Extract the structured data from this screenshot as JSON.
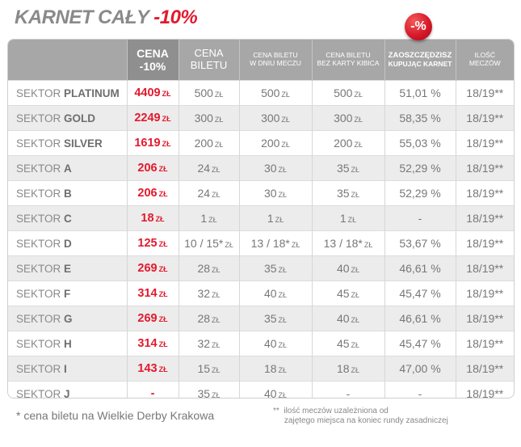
{
  "title": {
    "main": "KARNET CAŁY",
    "discount": "-10%"
  },
  "badge": "-%",
  "header": {
    "c0": "",
    "c1": [
      "CENA",
      "-10%"
    ],
    "c2": [
      "CENA",
      "BILETU"
    ],
    "c3": [
      "CENA BILETU",
      "W DNIU MECZU"
    ],
    "c4": [
      "CENA BILETU",
      "BEZ KARTY KIBICA"
    ],
    "c5": [
      "ZAOSZCZĘDZISZ",
      "KUPUJĄC KARNET"
    ],
    "c6": [
      "ILOŚĆ",
      "MECZÓW"
    ]
  },
  "currency": "ZŁ",
  "rows": [
    {
      "prefix": "SEKTOR",
      "name": "PLATINUM",
      "price": "4409",
      "price_unit": "ZŁ",
      "bilet": "500",
      "dzien": "500",
      "bez": "500",
      "oszcz": "51,01 %",
      "mecze": "18/19**"
    },
    {
      "prefix": "SEKTOR",
      "name": "GOLD",
      "price": "2249",
      "price_unit": "ZŁ",
      "bilet": "300",
      "dzien": "300",
      "bez": "300",
      "oszcz": "58,35 %",
      "mecze": "18/19**"
    },
    {
      "prefix": "SEKTOR",
      "name": "SILVER",
      "price": "1619",
      "price_unit": "ZŁ",
      "bilet": "200",
      "dzien": "200",
      "bez": "200",
      "oszcz": "55,03 %",
      "mecze": "18/19**"
    },
    {
      "prefix": "SEKTOR",
      "name": "A",
      "price": "206",
      "price_unit": "ZŁ",
      "bilet": "24",
      "dzien": "30",
      "bez": "35",
      "oszcz": "52,29 %",
      "mecze": "18/19**"
    },
    {
      "prefix": "SEKTOR",
      "name": "B",
      "price": "206",
      "price_unit": "ZŁ",
      "bilet": "24",
      "dzien": "30",
      "bez": "35",
      "oszcz": "52,29 %",
      "mecze": "18/19**"
    },
    {
      "prefix": "SEKTOR",
      "name": "C",
      "price": "18",
      "price_unit": "ZŁ",
      "bilet": "1",
      "dzien": "1",
      "bez": "1",
      "oszcz": "-",
      "mecze": "18/19**"
    },
    {
      "prefix": "SEKTOR",
      "name": "D",
      "price": "125",
      "price_unit": "ZŁ",
      "bilet": "10 / 15*",
      "dzien": "13 / 18*",
      "bez": "13 / 18*",
      "oszcz": "53,67 %",
      "mecze": "18/19**"
    },
    {
      "prefix": "SEKTOR",
      "name": "E",
      "price": "269",
      "price_unit": "ZŁ",
      "bilet": "28",
      "dzien": "35",
      "bez": "40",
      "oszcz": "46,61 %",
      "mecze": "18/19**"
    },
    {
      "prefix": "SEKTOR",
      "name": "F",
      "price": "314",
      "price_unit": "ZŁ",
      "bilet": "32",
      "dzien": "40",
      "bez": "45",
      "oszcz": "45,47 %",
      "mecze": "18/19**"
    },
    {
      "prefix": "SEKTOR",
      "name": "G",
      "price": "269",
      "price_unit": "ZŁ",
      "bilet": "28",
      "dzien": "35",
      "bez": "40",
      "oszcz": "46,61 %",
      "mecze": "18/19**"
    },
    {
      "prefix": "SEKTOR",
      "name": "H",
      "price": "314",
      "price_unit": "ZŁ",
      "bilet": "32",
      "dzien": "40",
      "bez": "45",
      "oszcz": "45,47 %",
      "mecze": "18/19**"
    },
    {
      "prefix": "SEKTOR",
      "name": "I",
      "price": "143",
      "price_unit": "ZŁ",
      "bilet": "15",
      "dzien": "18",
      "bez": "18",
      "oszcz": "47,00 %",
      "mecze": "18/19**"
    },
    {
      "prefix": "SEKTOR",
      "name": "J",
      "price": "-",
      "price_unit": "",
      "bilet": "35",
      "dzien": "40",
      "bez": "-",
      "oszcz": "-",
      "mecze": "18/19**"
    }
  ],
  "footnotes": {
    "f1": "* cena biletu na Wielkie Derby Krakowa",
    "f2_mark": "**",
    "f2_line1": "ilość meczów uzależniona od",
    "f2_line2": "zajętego miejsca na koniec rundy zasadniczej"
  },
  "colors": {
    "accent_red": "#e3192d",
    "header_gray": "#a7a7a7",
    "header_dark": "#8f8f8f",
    "row_alt": "#ececec"
  }
}
